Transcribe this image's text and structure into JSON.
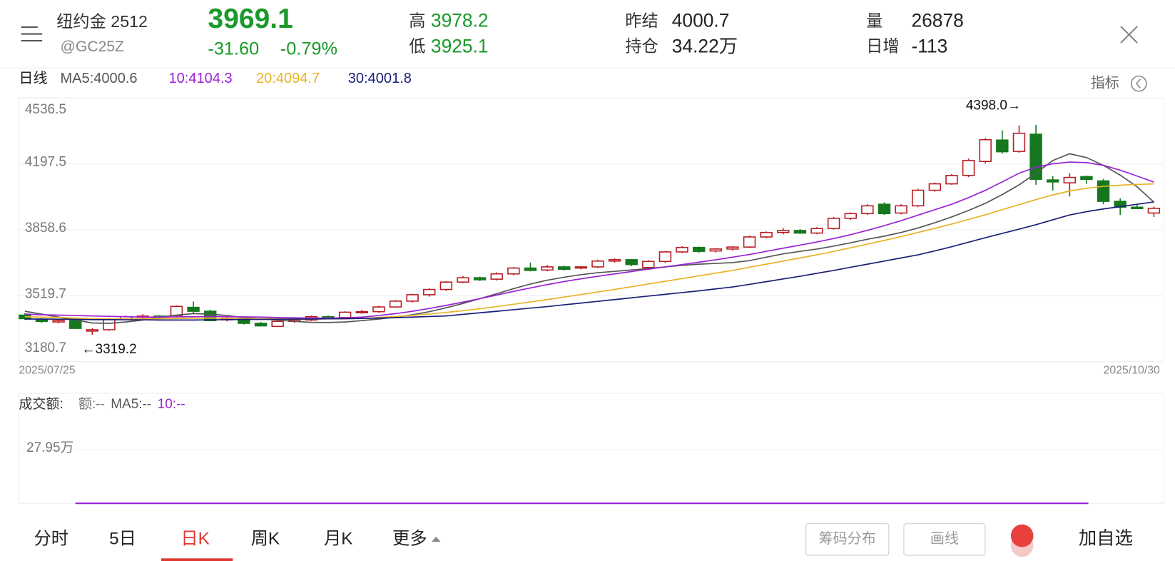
{
  "header": {
    "title": "纽约金 2512",
    "code": "@GC25Z",
    "price": 3969.1,
    "change": {
      "value": -31.6,
      "label": "-31.60"
    },
    "change_pct": {
      "value": -0.79,
      "label": "-0.79%"
    },
    "stats": [
      {
        "label": "高",
        "value": 3978.2
      },
      {
        "label": "低",
        "value": 3925.1
      },
      {
        "label": "昨结",
        "value": 4000.7
      },
      {
        "label": "持仓",
        "value": "34.22万"
      },
      {
        "label": "量",
        "value": 26878
      },
      {
        "label": "日增",
        "value": -113
      }
    ]
  },
  "chart_data": {
    "type": "candlestick",
    "period_label": "日线",
    "indicator_button": "指标",
    "categories": [
      "2025/07/25",
      null,
      null,
      null,
      null,
      null,
      null,
      null,
      null,
      null,
      null,
      null,
      null,
      null,
      null,
      null,
      null,
      null,
      null,
      null,
      null,
      null,
      null,
      null,
      null,
      null,
      null,
      null,
      null,
      null,
      null,
      null,
      null,
      null,
      null,
      null,
      null,
      null,
      null,
      null,
      null,
      null,
      null,
      null,
      null,
      null,
      null,
      null,
      null,
      null,
      null,
      null,
      null,
      null,
      null,
      null,
      null,
      null,
      null,
      null,
      null,
      null,
      null,
      null,
      null,
      null,
      null,
      "2025/10/30"
    ],
    "open": [
      3420,
      3398,
      3385,
      3392,
      3338,
      3345,
      3400,
      3410,
      3415,
      3418,
      3460,
      3440,
      3398,
      3402,
      3378,
      3362,
      3388,
      3395,
      3412,
      3408,
      3435,
      3438,
      3462,
      3492,
      3525,
      3552,
      3590,
      3612,
      3605,
      3632,
      3662,
      3652,
      3668,
      3664,
      3668,
      3698,
      3705,
      3665,
      3696,
      3745,
      3768,
      3750,
      3760,
      3770,
      3822,
      3845,
      3855,
      3842,
      3865,
      3918,
      3942,
      3990,
      3945,
      3982,
      4062,
      4095,
      4138,
      4210,
      4320,
      4262,
      4350,
      4115,
      4100,
      4132,
      4110,
      4005,
      3975,
      3945
    ],
    "high": [
      3430,
      3405,
      3398,
      3395,
      3352,
      3405,
      3418,
      3425,
      3420,
      3470,
      3490,
      3448,
      3410,
      3405,
      3385,
      3392,
      3402,
      3418,
      3418,
      3440,
      3448,
      3468,
      3498,
      3530,
      3558,
      3595,
      3620,
      3618,
      3640,
      3668,
      3690,
      3678,
      3675,
      3672,
      3705,
      3712,
      3708,
      3702,
      3750,
      3775,
      3772,
      3765,
      3775,
      3828,
      3850,
      3868,
      3862,
      3872,
      3925,
      3948,
      3990,
      4000,
      3990,
      4070,
      4102,
      4145,
      4225,
      4330,
      4370,
      4395,
      4398.0,
      4135,
      4150,
      4138,
      4120,
      4020,
      3988,
      3978.2
    ],
    "low": [
      3395,
      3380,
      3378,
      3350,
      3319.2,
      3340,
      3395,
      3402,
      3405,
      3412,
      3428,
      3388,
      3388,
      3372,
      3362,
      3360,
      3380,
      3390,
      3400,
      3402,
      3428,
      3432,
      3458,
      3485,
      3515,
      3545,
      3585,
      3595,
      3598,
      3625,
      3645,
      3645,
      3648,
      3655,
      3662,
      3690,
      3672,
      3658,
      3690,
      3740,
      3740,
      3742,
      3752,
      3765,
      3815,
      3835,
      3838,
      3836,
      3860,
      3910,
      3935,
      3935,
      3938,
      3975,
      4055,
      4090,
      4130,
      4200,
      4250,
      4255,
      4090,
      4060,
      4030,
      4095,
      3990,
      3935,
      3965,
      3925.1
    ],
    "close": [
      3402,
      3388,
      3392,
      3352,
      3345,
      3398,
      3412,
      3415,
      3410,
      3465,
      3440,
      3392,
      3402,
      3378,
      3365,
      3388,
      3395,
      3412,
      3408,
      3435,
      3438,
      3462,
      3492,
      3525,
      3552,
      3590,
      3612,
      3602,
      3632,
      3662,
      3650,
      3668,
      3656,
      3668,
      3698,
      3705,
      3680,
      3696,
      3745,
      3768,
      3748,
      3760,
      3770,
      3822,
      3845,
      3855,
      3842,
      3865,
      3918,
      3942,
      3982,
      3942,
      3982,
      4062,
      4095,
      4138,
      4215,
      4322,
      4260,
      4355,
      4118,
      4105,
      4128,
      4118,
      4005,
      3975,
      3968,
      3969.1
    ],
    "up_color": "#b81c22",
    "down_color": "#16781e",
    "series": [
      {
        "name": "MA5:4000.6",
        "color": "#555555",
        "values": [
          3440,
          3425,
          3410,
          3395,
          3380,
          3378,
          3385,
          3395,
          3410,
          3420,
          3428,
          3425,
          3418,
          3408,
          3400,
          3395,
          3388,
          3383,
          3382,
          3385,
          3392,
          3400,
          3410,
          3422,
          3438,
          3458,
          3480,
          3505,
          3530,
          3556,
          3580,
          3600,
          3615,
          3628,
          3638,
          3645,
          3652,
          3660,
          3668,
          3676,
          3682,
          3686,
          3690,
          3700,
          3718,
          3735,
          3748,
          3760,
          3775,
          3792,
          3810,
          3826,
          3845,
          3868,
          3895,
          3925,
          3958,
          3995,
          4040,
          4090,
          4150,
          4215,
          4250,
          4230,
          4190,
          4140,
          4080,
          4000.6
        ]
      },
      {
        "name": "10:4104.3",
        "color": "#9a22d6",
        "values": [
          3425,
          3422,
          3420,
          3418,
          3416,
          3414,
          3412,
          3410,
          3410,
          3411,
          3412,
          3413,
          3412,
          3411,
          3410,
          3408,
          3406,
          3405,
          3405,
          3406,
          3410,
          3418,
          3428,
          3440,
          3454,
          3470,
          3487,
          3505,
          3523,
          3542,
          3560,
          3577,
          3593,
          3607,
          3620,
          3632,
          3644,
          3656,
          3668,
          3680,
          3692,
          3705,
          3718,
          3732,
          3748,
          3764,
          3780,
          3796,
          3814,
          3834,
          3856,
          3880,
          3906,
          3934,
          3962,
          3990,
          4024,
          4062,
          4105,
          4150,
          4180,
          4198,
          4207,
          4204,
          4190,
          4165,
          4135,
          4104.3
        ]
      },
      {
        "name": "20:4094.7",
        "color": "#e8b325",
        "values": [
          3412,
          3410,
          3408,
          3405,
          3402,
          3400,
          3400,
          3401,
          3402,
          3403,
          3404,
          3405,
          3404,
          3403,
          3402,
          3401,
          3400,
          3400,
          3401,
          3402,
          3404,
          3408,
          3413,
          3419,
          3426,
          3434,
          3443,
          3453,
          3464,
          3476,
          3488,
          3500,
          3513,
          3526,
          3539,
          3552,
          3566,
          3580,
          3594,
          3608,
          3622,
          3636,
          3650,
          3666,
          3682,
          3698,
          3714,
          3730,
          3748,
          3766,
          3785,
          3804,
          3824,
          3845,
          3866,
          3888,
          3912,
          3936,
          3962,
          3988,
          4014,
          4038,
          4058,
          4072,
          4082,
          4088,
          4092,
          4094.7
        ]
      },
      {
        "name": "30:4001.8",
        "color": "#1a1f78",
        "values": [
          3400,
          3400,
          3399,
          3398,
          3397,
          3397,
          3396,
          3396,
          3395,
          3395,
          3395,
          3396,
          3397,
          3398,
          3398,
          3399,
          3400,
          3400,
          3401,
          3402,
          3403,
          3405,
          3407,
          3410,
          3413,
          3416,
          3424,
          3432,
          3440,
          3448,
          3456,
          3464,
          3473,
          3482,
          3491,
          3500,
          3509,
          3518,
          3527,
          3536,
          3545,
          3555,
          3565,
          3578,
          3592,
          3606,
          3620,
          3635,
          3650,
          3666,
          3682,
          3698,
          3714,
          3730,
          3750,
          3772,
          3795,
          3818,
          3840,
          3862,
          3885,
          3910,
          3935,
          3952,
          3966,
          3978,
          3990,
          4001.8
        ]
      }
    ],
    "annotations": {
      "max": "4398.0→",
      "min": "←3319.2"
    },
    "ylim": [
      3180.7,
      4536.5
    ],
    "yticks": [
      3180.7,
      3519.7,
      3858.6,
      4197.5,
      4536.5
    ],
    "grid": true
  },
  "volume_panel": {
    "label": "成交额:",
    "items": [
      {
        "text": "额:--",
        "color": "#777777"
      },
      {
        "text": "MA5:--",
        "color": "#555555"
      },
      {
        "text": "10:--",
        "color": "#9a22d6"
      }
    ],
    "ylim": [
      0,
      559000
    ],
    "yticks": [
      {
        "value": 279500,
        "label": "27.95万"
      }
    ]
  },
  "tabs": [
    "分时",
    "5日",
    "日K",
    "周K",
    "月K",
    "更多"
  ],
  "active_tab": 2,
  "buttons": [
    "筹码分布",
    "画线"
  ],
  "add_button": "加自选"
}
